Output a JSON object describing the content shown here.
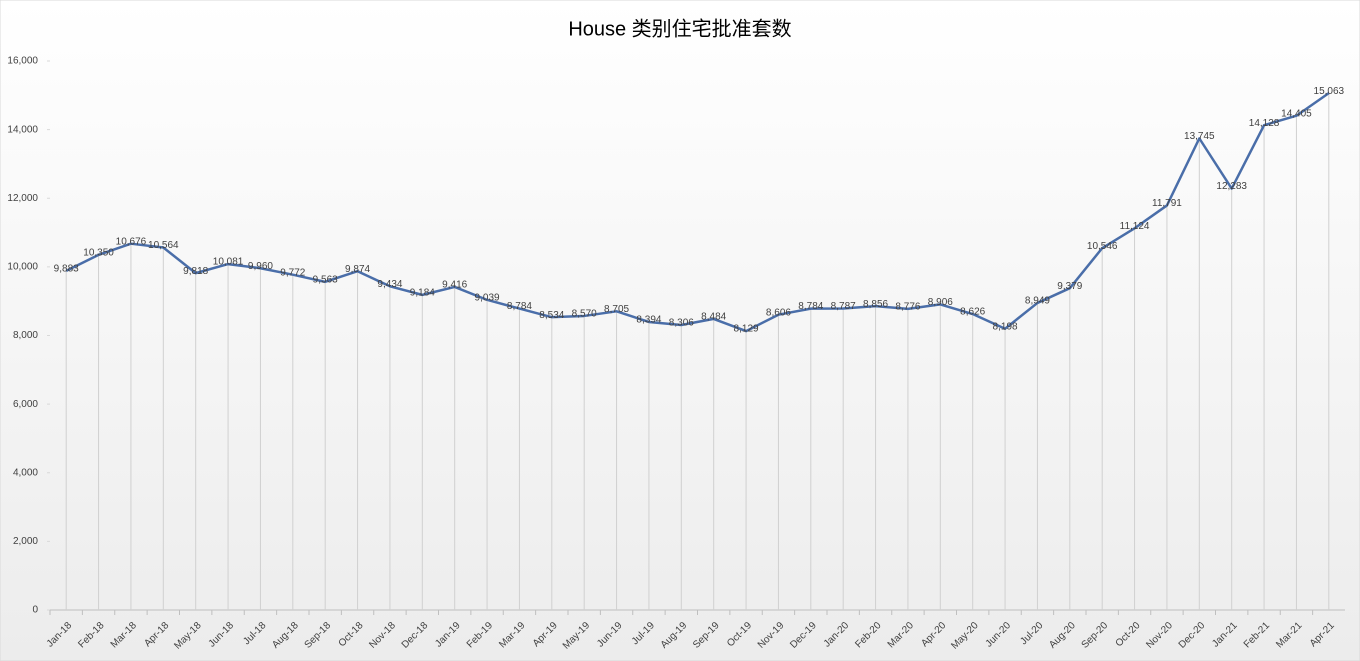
{
  "chart_data": {
    "type": "line",
    "title": "House 类别住宅批准套数",
    "categories": [
      "Jan-18",
      "Feb-18",
      "Mar-18",
      "Apr-18",
      "May-18",
      "Jun-18",
      "Jul-18",
      "Aug-18",
      "Sep-18",
      "Oct-18",
      "Nov-18",
      "Dec-18",
      "Jan-19",
      "Feb-19",
      "Mar-19",
      "Apr-19",
      "May-19",
      "Jun-19",
      "Jul-19",
      "Aug-19",
      "Sep-19",
      "Oct-19",
      "Nov-19",
      "Dec-19",
      "Jan-20",
      "Feb-20",
      "Mar-20",
      "Apr-20",
      "May-20",
      "Jun-20",
      "Jul-20",
      "Aug-20",
      "Sep-20",
      "Oct-20",
      "Nov-20",
      "Dec-20",
      "Jan-21",
      "Feb-21",
      "Mar-21",
      "Apr-21"
    ],
    "values": [
      9883,
      10350,
      10676,
      10564,
      9818,
      10081,
      9960,
      9772,
      9563,
      9874,
      9434,
      9184,
      9416,
      9039,
      8784,
      8534,
      8570,
      8705,
      8394,
      8306,
      8484,
      8129,
      8606,
      8784,
      8787,
      8856,
      8776,
      8906,
      8626,
      8198,
      8949,
      9379,
      10546,
      11124,
      11791,
      13745,
      12283,
      14128,
      14405,
      15063
    ],
    "value_labels": [
      "9,883",
      "10,350",
      "10,676",
      "10,564",
      "9,818",
      "10,081",
      "9,960",
      "9,772",
      "9,563",
      "9,874",
      "9,434",
      "9,184",
      "9,416",
      "9,039",
      "8,784",
      "8,534",
      "8,570",
      "8,705",
      "8,394",
      "8,306",
      "8,484",
      "8,129",
      "8,606",
      "8,784",
      "8,787",
      "8,856",
      "8,776",
      "8,906",
      "8,626",
      "8,198",
      "8,949",
      "9,379",
      "10,546",
      "11,124",
      "11,791",
      "13,745",
      "12,283",
      "14,128",
      "14,405",
      "15,063"
    ],
    "color": "#4a6ea9",
    "ylim": [
      0,
      16000
    ],
    "yticks": [
      0,
      {
        "value": 2000,
        "label": "2,000"
      },
      {
        "value": 4000,
        "label": "4,000"
      },
      {
        "value": 6000,
        "label": "6,000"
      },
      {
        "value": 8000,
        "label": "8,000"
      },
      {
        "value": 10000,
        "label": "10,000"
      },
      {
        "value": 12000,
        "label": "12,000"
      },
      {
        "value": 14000,
        "label": "14,000"
      },
      {
        "value": 16000,
        "label": "16,000"
      }
    ],
    "drop_lines": true
  }
}
